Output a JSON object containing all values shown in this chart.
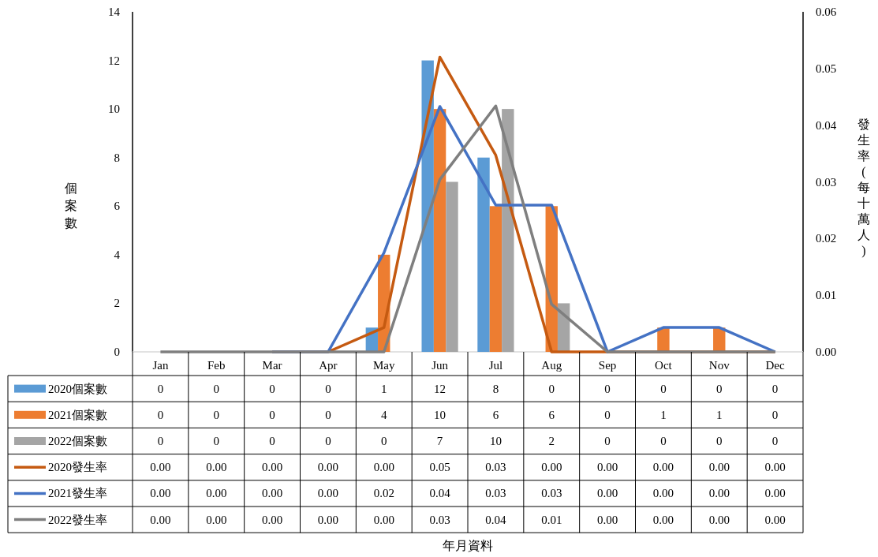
{
  "chart_data": {
    "type": "bar",
    "annotations": [
      "年月資料"
    ],
    "ylabel": "個案數",
    "y2label": "發生率(每十萬人)",
    "categories": [
      "Jan",
      "Feb",
      "Mar",
      "Apr",
      "May",
      "Jun",
      "Jul",
      "Aug",
      "Sep",
      "Oct",
      "Nov",
      "Dec"
    ],
    "ylim": [
      0,
      14
    ],
    "yticks": [
      0,
      2,
      4,
      6,
      8,
      10,
      12,
      14
    ],
    "y2lim": [
      0,
      0.06
    ],
    "y2ticks": [
      {
        "value": 0,
        "label": "0.00"
      },
      {
        "value": 0.01,
        "label": "0.01"
      },
      {
        "value": 0.02,
        "label": "0.02"
      },
      {
        "value": 0.03,
        "label": "0.03"
      },
      {
        "value": 0.04,
        "label": "0.04"
      },
      {
        "value": 0.05,
        "label": "0.05"
      },
      {
        "value": 0.06,
        "label": "0.06"
      }
    ],
    "grid": false,
    "legend": "bottom",
    "series": [
      {
        "name": "2020個案數",
        "color": "#5b9bd5",
        "values": [
          0,
          0,
          0,
          0,
          1,
          12,
          8,
          0,
          0,
          0,
          0,
          0
        ],
        "value_labels": [
          "0",
          "0",
          "0",
          "0",
          "1",
          "12",
          "8",
          "0",
          "0",
          "0",
          "0",
          "0"
        ]
      },
      {
        "name": "2021個案數",
        "color": "#ed7d31",
        "values": [
          0,
          0,
          0,
          0,
          4,
          10,
          6,
          6,
          0,
          1,
          1,
          0
        ],
        "value_labels": [
          "0",
          "0",
          "0",
          "0",
          "4",
          "10",
          "6",
          "6",
          "0",
          "1",
          "1",
          "0"
        ]
      },
      {
        "name": "2022個案數",
        "color": "#a5a5a5",
        "values": [
          0,
          0,
          0,
          0,
          0,
          7,
          10,
          2,
          0,
          0,
          0,
          0
        ],
        "value_labels": [
          "0",
          "0",
          "0",
          "0",
          "0",
          "7",
          "10",
          "2",
          "0",
          "0",
          "0",
          "0"
        ]
      },
      {
        "name": "2020發生率",
        "type": "line",
        "axis": "y2",
        "color": "#c55a11",
        "values": [
          null,
          null,
          0,
          0,
          0.0043,
          0.052,
          0.0347,
          0,
          0,
          0,
          0,
          0
        ],
        "value_labels": [
          "0.00",
          "0.00",
          "0.00",
          "0.00",
          "0.00",
          "0.05",
          "0.03",
          "0.00",
          "0.00",
          "0.00",
          "0.00",
          "0.00"
        ]
      },
      {
        "name": "2021發生率",
        "type": "line",
        "axis": "y2",
        "color": "#4472c4",
        "values": [
          null,
          null,
          0,
          0,
          0.0175,
          0.0433,
          0.0259,
          0.0259,
          0,
          0.0043,
          0.0043,
          0
        ],
        "value_labels": [
          "0.00",
          "0.00",
          "0.00",
          "0.00",
          "0.02",
          "0.04",
          "0.03",
          "0.03",
          "0.00",
          "0.00",
          "0.00",
          "0.00"
        ]
      },
      {
        "name": "2022發生率",
        "type": "line",
        "axis": "y2",
        "color": "#7f7f7f",
        "values": [
          0,
          0,
          0,
          0,
          0,
          0.0304,
          0.0434,
          0.0084,
          0,
          0,
          0,
          0
        ],
        "value_labels": [
          "0.00",
          "0.00",
          "0.00",
          "0.00",
          "0.00",
          "0.03",
          "0.04",
          "0.01",
          "0.00",
          "0.00",
          "0.00",
          "0.00"
        ]
      }
    ]
  }
}
